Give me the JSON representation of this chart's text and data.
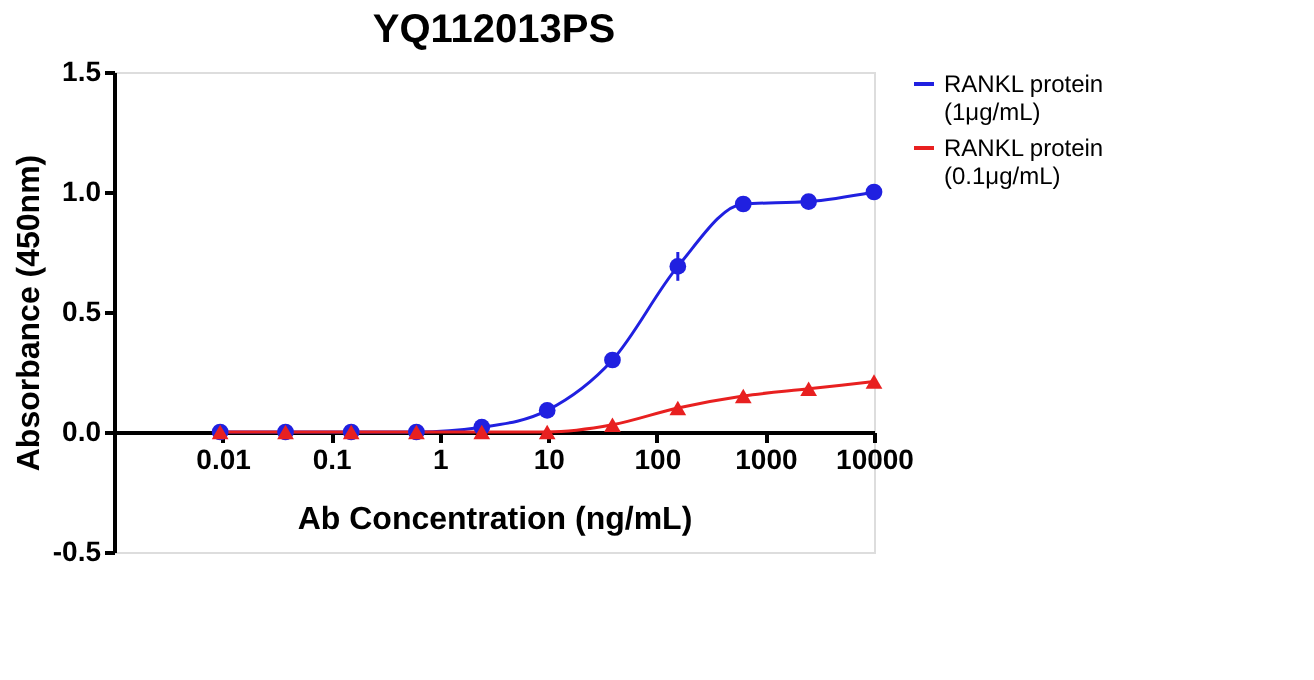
{
  "chart_data": {
    "type": "line",
    "title": "YQ112013PS",
    "xlabel": "Ab Concentration (ng/mL)",
    "ylabel": "Absorbance (450nm)",
    "log": "x",
    "xlim": [
      0.001,
      10000
    ],
    "xticks": [
      0.01,
      0.1,
      1,
      10,
      100,
      1000,
      10000
    ],
    "ylim": [
      -0.5,
      1.5
    ],
    "yticks": [
      {
        "value": -0.5,
        "label": "-0.5"
      },
      {
        "value": 0,
        "label": "0.0"
      },
      {
        "value": 0.5,
        "label": "0.5"
      },
      {
        "value": 1.0,
        "label": "1.0"
      },
      {
        "value": 1.5,
        "label": "1.5"
      }
    ],
    "grid": false,
    "legend": "right",
    "x": [
      0.0095,
      0.038,
      0.153,
      0.61,
      2.44,
      9.77,
      39,
      156,
      625,
      2500,
      10000
    ],
    "series": [
      {
        "name": "RANKL protein\n(1μg/mL)",
        "color": "#2020e0",
        "marker": "circle",
        "values": [
          0.0,
          0.0,
          0.0,
          0.0,
          0.02,
          0.09,
          0.3,
          0.69,
          0.95,
          0.96,
          1.0
        ],
        "errors": [
          null,
          null,
          null,
          null,
          null,
          null,
          0.03,
          0.06,
          null,
          null,
          null
        ]
      },
      {
        "name": "RANKL protein\n(0.1μg/mL)",
        "color": "#e82020",
        "marker": "triangle",
        "values": [
          0.0,
          0.0,
          0.0,
          0.0,
          0.0,
          0.0,
          0.03,
          0.1,
          0.15,
          0.18,
          0.21
        ]
      }
    ]
  }
}
